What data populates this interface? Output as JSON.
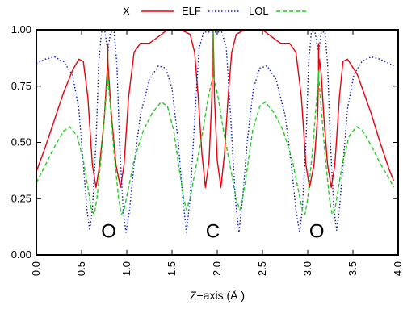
{
  "chart_data": {
    "type": "line",
    "title": "",
    "xlabel": "Z−axis (Å )",
    "ylabel": "",
    "xlim": [
      0,
      4.0
    ],
    "ylim": [
      0,
      1.0
    ],
    "x_ticks": [
      "0.0",
      "0.5",
      "1.0",
      "1.5",
      "2.0",
      "2.5",
      "3.0",
      "3.5",
      "4.0"
    ],
    "y_ticks": [
      "0.00",
      "0.25",
      "0.50",
      "0.75",
      "1.00"
    ],
    "legend": {
      "placement": "top",
      "x_symbol": "X"
    },
    "annotations": [
      {
        "text": "O",
        "x": 0.8,
        "y": 0.12
      },
      {
        "text": "C",
        "x": 1.95,
        "y": 0.12
      },
      {
        "text": "O",
        "x": 3.1,
        "y": 0.12
      }
    ],
    "series": [
      {
        "name": "ELF",
        "color": "#e8000b",
        "style": "solid",
        "points": [
          [
            0.0,
            0.37
          ],
          [
            0.1,
            0.48
          ],
          [
            0.2,
            0.6
          ],
          [
            0.3,
            0.72
          ],
          [
            0.4,
            0.82
          ],
          [
            0.47,
            0.87
          ],
          [
            0.52,
            0.86
          ],
          [
            0.57,
            0.7
          ],
          [
            0.62,
            0.4
          ],
          [
            0.66,
            0.3
          ],
          [
            0.7,
            0.4
          ],
          [
            0.75,
            0.6
          ],
          [
            0.78,
            0.8
          ],
          [
            0.79,
            0.87
          ],
          [
            0.8,
            0.8
          ],
          [
            0.83,
            0.62
          ],
          [
            0.88,
            0.4
          ],
          [
            0.93,
            0.3
          ],
          [
            0.97,
            0.4
          ],
          [
            1.02,
            0.7
          ],
          [
            1.08,
            0.9
          ],
          [
            1.15,
            0.94
          ],
          [
            1.25,
            0.94
          ],
          [
            1.35,
            0.97
          ],
          [
            1.45,
            1.0
          ],
          [
            1.6,
            1.0
          ],
          [
            1.7,
            0.98
          ],
          [
            1.75,
            0.9
          ],
          [
            1.79,
            0.7
          ],
          [
            1.83,
            0.45
          ],
          [
            1.87,
            0.3
          ],
          [
            1.91,
            0.42
          ],
          [
            1.94,
            0.7
          ],
          [
            1.955,
            0.99
          ],
          [
            1.97,
            0.7
          ],
          [
            2.0,
            0.42
          ],
          [
            2.04,
            0.3
          ],
          [
            2.08,
            0.45
          ],
          [
            2.12,
            0.7
          ],
          [
            2.16,
            0.9
          ],
          [
            2.21,
            0.98
          ],
          [
            2.3,
            1.0
          ],
          [
            2.5,
            1.0
          ],
          [
            2.6,
            0.97
          ],
          [
            2.7,
            0.94
          ],
          [
            2.8,
            0.94
          ],
          [
            2.87,
            0.9
          ],
          [
            2.93,
            0.7
          ],
          [
            2.98,
            0.4
          ],
          [
            3.02,
            0.3
          ],
          [
            3.07,
            0.4
          ],
          [
            3.11,
            0.62
          ],
          [
            3.12,
            0.8
          ],
          [
            3.13,
            0.87
          ],
          [
            3.15,
            0.8
          ],
          [
            3.18,
            0.6
          ],
          [
            3.22,
            0.4
          ],
          [
            3.26,
            0.3
          ],
          [
            3.3,
            0.4
          ],
          [
            3.35,
            0.7
          ],
          [
            3.39,
            0.86
          ],
          [
            3.44,
            0.87
          ],
          [
            3.55,
            0.8
          ],
          [
            3.7,
            0.63
          ],
          [
            3.8,
            0.5
          ],
          [
            3.9,
            0.38
          ],
          [
            3.95,
            0.33
          ]
        ]
      },
      {
        "name": "LOL",
        "color": "#0a1bc2",
        "style": "dotted",
        "points": [
          [
            0.0,
            0.85
          ],
          [
            0.1,
            0.87
          ],
          [
            0.2,
            0.88
          ],
          [
            0.3,
            0.86
          ],
          [
            0.4,
            0.8
          ],
          [
            0.47,
            0.65
          ],
          [
            0.52,
            0.4
          ],
          [
            0.56,
            0.2
          ],
          [
            0.59,
            0.11
          ],
          [
            0.62,
            0.2
          ],
          [
            0.66,
            0.5
          ],
          [
            0.69,
            0.85
          ],
          [
            0.72,
            0.99
          ],
          [
            0.76,
            0.99
          ],
          [
            0.79,
            0.9
          ],
          [
            0.82,
            0.99
          ],
          [
            0.86,
            0.99
          ],
          [
            0.89,
            0.85
          ],
          [
            0.92,
            0.5
          ],
          [
            0.96,
            0.2
          ],
          [
            0.99,
            0.1
          ],
          [
            1.03,
            0.2
          ],
          [
            1.08,
            0.4
          ],
          [
            1.15,
            0.62
          ],
          [
            1.25,
            0.78
          ],
          [
            1.35,
            0.84
          ],
          [
            1.43,
            0.83
          ],
          [
            1.5,
            0.74
          ],
          [
            1.57,
            0.5
          ],
          [
            1.62,
            0.25
          ],
          [
            1.66,
            0.1
          ],
          [
            1.7,
            0.25
          ],
          [
            1.75,
            0.6
          ],
          [
            1.8,
            0.92
          ],
          [
            1.85,
            0.99
          ],
          [
            1.9,
            0.99
          ],
          [
            1.955,
            0.99
          ],
          [
            2.0,
            0.99
          ],
          [
            2.05,
            0.99
          ],
          [
            2.1,
            0.92
          ],
          [
            2.15,
            0.6
          ],
          [
            2.2,
            0.25
          ],
          [
            2.24,
            0.1
          ],
          [
            2.28,
            0.25
          ],
          [
            2.33,
            0.5
          ],
          [
            2.4,
            0.74
          ],
          [
            2.47,
            0.83
          ],
          [
            2.55,
            0.84
          ],
          [
            2.65,
            0.78
          ],
          [
            2.75,
            0.62
          ],
          [
            2.82,
            0.4
          ],
          [
            2.87,
            0.2
          ],
          [
            2.91,
            0.1
          ],
          [
            2.94,
            0.2
          ],
          [
            2.98,
            0.5
          ],
          [
            3.01,
            0.85
          ],
          [
            3.04,
            0.99
          ],
          [
            3.08,
            0.99
          ],
          [
            3.12,
            0.9
          ],
          [
            3.15,
            0.99
          ],
          [
            3.19,
            0.99
          ],
          [
            3.22,
            0.85
          ],
          [
            3.25,
            0.5
          ],
          [
            3.29,
            0.2
          ],
          [
            3.32,
            0.11
          ],
          [
            3.35,
            0.2
          ],
          [
            3.39,
            0.4
          ],
          [
            3.44,
            0.65
          ],
          [
            3.51,
            0.8
          ],
          [
            3.6,
            0.86
          ],
          [
            3.7,
            0.88
          ],
          [
            3.8,
            0.87
          ],
          [
            3.95,
            0.84
          ]
        ]
      },
      {
        "name": "",
        "color": "#22cc22",
        "style": "dashed",
        "points": [
          [
            0.0,
            0.32
          ],
          [
            0.1,
            0.4
          ],
          [
            0.2,
            0.48
          ],
          [
            0.3,
            0.55
          ],
          [
            0.37,
            0.57
          ],
          [
            0.45,
            0.53
          ],
          [
            0.52,
            0.42
          ],
          [
            0.57,
            0.3
          ],
          [
            0.61,
            0.2
          ],
          [
            0.64,
            0.18
          ],
          [
            0.67,
            0.25
          ],
          [
            0.72,
            0.45
          ],
          [
            0.76,
            0.65
          ],
          [
            0.79,
            0.8
          ],
          [
            0.82,
            0.65
          ],
          [
            0.86,
            0.45
          ],
          [
            0.91,
            0.25
          ],
          [
            0.94,
            0.18
          ],
          [
            0.97,
            0.2
          ],
          [
            1.02,
            0.3
          ],
          [
            1.08,
            0.42
          ],
          [
            1.18,
            0.55
          ],
          [
            1.28,
            0.63
          ],
          [
            1.38,
            0.68
          ],
          [
            1.45,
            0.66
          ],
          [
            1.52,
            0.55
          ],
          [
            1.58,
            0.38
          ],
          [
            1.63,
            0.25
          ],
          [
            1.66,
            0.2
          ],
          [
            1.7,
            0.25
          ],
          [
            1.77,
            0.4
          ],
          [
            1.84,
            0.55
          ],
          [
            1.9,
            0.7
          ],
          [
            1.955,
            0.8
          ],
          [
            2.01,
            0.7
          ],
          [
            2.07,
            0.55
          ],
          [
            2.14,
            0.4
          ],
          [
            2.21,
            0.25
          ],
          [
            2.25,
            0.2
          ],
          [
            2.28,
            0.25
          ],
          [
            2.33,
            0.38
          ],
          [
            2.39,
            0.55
          ],
          [
            2.47,
            0.66
          ],
          [
            2.53,
            0.68
          ],
          [
            2.63,
            0.63
          ],
          [
            2.73,
            0.55
          ],
          [
            2.83,
            0.42
          ],
          [
            2.89,
            0.3
          ],
          [
            2.94,
            0.2
          ],
          [
            2.97,
            0.18
          ],
          [
            3.0,
            0.25
          ],
          [
            3.05,
            0.45
          ],
          [
            3.09,
            0.65
          ],
          [
            3.12,
            0.8
          ],
          [
            3.15,
            0.65
          ],
          [
            3.19,
            0.45
          ],
          [
            3.24,
            0.25
          ],
          [
            3.27,
            0.18
          ],
          [
            3.3,
            0.2
          ],
          [
            3.34,
            0.3
          ],
          [
            3.39,
            0.42
          ],
          [
            3.46,
            0.53
          ],
          [
            3.54,
            0.57
          ],
          [
            3.61,
            0.55
          ],
          [
            3.71,
            0.48
          ],
          [
            3.81,
            0.4
          ],
          [
            3.9,
            0.34
          ],
          [
            3.95,
            0.3
          ]
        ]
      }
    ],
    "spikes": [
      {
        "x": 0.79,
        "y_top": 0.94,
        "y_base": 0.75,
        "color": "#22cc22"
      },
      {
        "x": 0.79,
        "y_top": 0.94,
        "y_base": 0.82,
        "color": "#e8000b"
      },
      {
        "x": 1.955,
        "y_top": 1.0,
        "y_base": 0.8,
        "color": "#22cc22"
      },
      {
        "x": 3.12,
        "y_top": 0.94,
        "y_base": 0.75,
        "color": "#22cc22"
      },
      {
        "x": 3.12,
        "y_top": 0.94,
        "y_base": 0.82,
        "color": "#e8000b"
      }
    ]
  }
}
